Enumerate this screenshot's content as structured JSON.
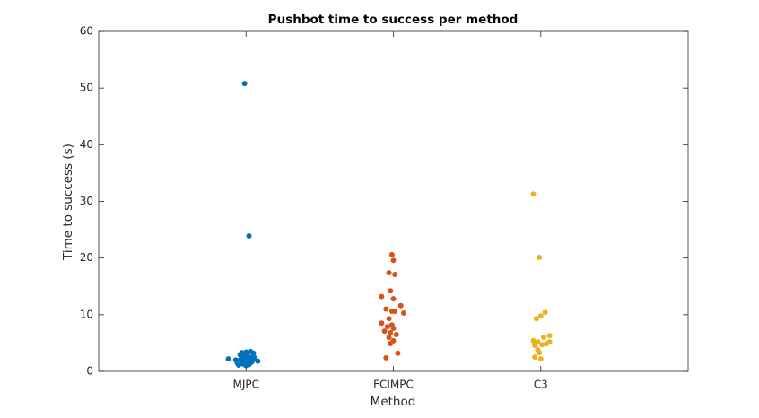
{
  "chart_data": {
    "type": "scatter",
    "title": "Pushbot time to success per method",
    "xlabel": "Method",
    "ylabel": "Time to success (s)",
    "xlim": [
      0,
      4
    ],
    "xticks": [
      {
        "value": 1,
        "label": "MJPC"
      },
      {
        "value": 2,
        "label": "FCIMPC"
      },
      {
        "value": 3,
        "label": "C3"
      }
    ],
    "ylim": [
      0,
      60
    ],
    "yticks": [
      0,
      10,
      20,
      30,
      40,
      50,
      60
    ],
    "series": [
      {
        "color": "#0072bd",
        "x": [
          0.99,
          1.02,
          0.88,
          1.08,
          0.94,
          0.96,
          0.97,
          0.98,
          1.0,
          1.01,
          1.02,
          1.03,
          1.04,
          1.05,
          0.95,
          0.97,
          0.99,
          1.0,
          1.02,
          1.03,
          0.96,
          0.98,
          1.01,
          1.04,
          1.06,
          0.93,
          0.97,
          1.0,
          1.03,
          1.05
        ],
        "values": [
          50.8,
          23.9,
          2.2,
          1.8,
          1.5,
          2.0,
          2.6,
          3.0,
          3.4,
          2.8,
          1.2,
          1.9,
          2.5,
          3.2,
          1.1,
          1.6,
          2.3,
          1.4,
          2.1,
          3.5,
          2.9,
          1.3,
          2.7,
          1.7,
          2.4,
          2.0,
          3.3,
          1.0,
          1.5,
          2.2
        ]
      },
      {
        "color": "#d95319",
        "x": [
          1.99,
          2.0,
          1.97,
          2.01,
          1.98,
          1.92,
          2.0,
          2.05,
          1.95,
          1.99,
          2.01,
          2.07,
          1.97,
          1.92,
          1.99,
          1.96,
          2.0,
          1.94,
          1.98,
          2.02,
          1.97,
          2.0,
          1.98,
          2.03,
          1.95
        ],
        "values": [
          20.6,
          19.6,
          17.4,
          17.1,
          14.2,
          13.2,
          12.8,
          11.6,
          11.0,
          10.6,
          10.6,
          10.3,
          9.3,
          8.5,
          8.2,
          7.9,
          7.6,
          7.1,
          6.8,
          6.5,
          6.0,
          5.4,
          4.9,
          3.2,
          2.4
        ]
      },
      {
        "color": "#edb120",
        "x": [
          2.95,
          2.99,
          3.03,
          3.0,
          2.97,
          3.06,
          3.02,
          2.95,
          2.98,
          3.06,
          3.01,
          2.96,
          3.04,
          2.98,
          2.99,
          2.96,
          3.0
        ],
        "values": [
          31.3,
          20.1,
          10.4,
          9.8,
          9.3,
          6.3,
          6.0,
          5.4,
          5.2,
          5.2,
          4.7,
          4.6,
          4.9,
          3.8,
          3.3,
          2.5,
          2.2
        ]
      }
    ]
  }
}
